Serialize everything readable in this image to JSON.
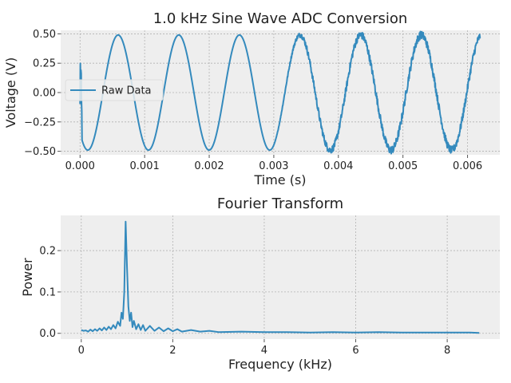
{
  "chart_data": [
    {
      "type": "line",
      "title": "1.0 kHz Sine Wave ADC Conversion",
      "xlabel": "Time (s)",
      "ylabel": "Voltage (V)",
      "xlim": [
        -0.0003,
        0.0065
      ],
      "ylim": [
        -0.53,
        0.53
      ],
      "xticks": [
        0.0,
        0.001,
        0.002,
        0.003,
        0.004,
        0.005,
        0.006
      ],
      "xtick_labels": [
        "0.000",
        "0.001",
        "0.002",
        "0.003",
        "0.004",
        "0.005",
        "0.006"
      ],
      "yticks": [
        0.5,
        0.25,
        0.0,
        -0.25,
        -0.5
      ],
      "ytick_labels": [
        "0.50",
        "0.25",
        "0.00",
        "−0.25",
        "−0.50"
      ],
      "grid": true,
      "legend": {
        "placement": "center-left",
        "entries": [
          "Raw Data"
        ]
      },
      "series": [
        {
          "name": "Raw Data",
          "color": "#348ABD",
          "signal": {
            "amplitude": 0.49,
            "frequency_hz": 1065,
            "phase_t_at_min": 0.00012,
            "t_start": 0.0,
            "t_end": 0.0062
          },
          "noise_points": [
            [
              0.0,
              0.0
            ],
            [
              0.003,
              0.0
            ],
            [
              0.0035,
              0.025
            ],
            [
              0.004,
              0.03
            ],
            [
              0.005,
              0.035
            ],
            [
              0.0062,
              0.03
            ]
          ]
        }
      ]
    },
    {
      "type": "line",
      "title": "Fourier Transform",
      "xlabel": "Frequency (kHz)",
      "ylabel": "Power",
      "xlim": [
        -0.45,
        9.15
      ],
      "ylim": [
        -0.014,
        0.285
      ],
      "xticks": [
        0,
        2,
        4,
        6,
        8
      ],
      "xtick_labels": [
        "0",
        "2",
        "4",
        "6",
        "8"
      ],
      "yticks": [
        0.0,
        0.1,
        0.2
      ],
      "ytick_labels": [
        "0.0",
        "0.1",
        "0.2"
      ],
      "grid": true,
      "series": [
        {
          "color": "#348ABD",
          "points": [
            [
              0.0,
              0.008
            ],
            [
              0.05,
              0.006
            ],
            [
              0.1,
              0.007
            ],
            [
              0.15,
              0.004
            ],
            [
              0.2,
              0.009
            ],
            [
              0.25,
              0.005
            ],
            [
              0.3,
              0.01
            ],
            [
              0.35,
              0.006
            ],
            [
              0.4,
              0.012
            ],
            [
              0.45,
              0.007
            ],
            [
              0.5,
              0.014
            ],
            [
              0.55,
              0.008
            ],
            [
              0.6,
              0.016
            ],
            [
              0.65,
              0.01
            ],
            [
              0.7,
              0.02
            ],
            [
              0.75,
              0.012
            ],
            [
              0.8,
              0.028
            ],
            [
              0.85,
              0.018
            ],
            [
              0.88,
              0.05
            ],
            [
              0.91,
              0.035
            ],
            [
              0.94,
              0.1
            ],
            [
              0.97,
              0.27
            ],
            [
              1.0,
              0.16
            ],
            [
              1.03,
              0.065
            ],
            [
              1.06,
              0.03
            ],
            [
              1.09,
              0.05
            ],
            [
              1.12,
              0.015
            ],
            [
              1.15,
              0.03
            ],
            [
              1.2,
              0.01
            ],
            [
              1.25,
              0.022
            ],
            [
              1.3,
              0.008
            ],
            [
              1.35,
              0.02
            ],
            [
              1.4,
              0.006
            ],
            [
              1.5,
              0.018
            ],
            [
              1.6,
              0.006
            ],
            [
              1.7,
              0.014
            ],
            [
              1.8,
              0.005
            ],
            [
              1.9,
              0.012
            ],
            [
              2.0,
              0.005
            ],
            [
              2.1,
              0.01
            ],
            [
              2.2,
              0.004
            ],
            [
              2.4,
              0.008
            ],
            [
              2.6,
              0.004
            ],
            [
              2.8,
              0.006
            ],
            [
              3.0,
              0.003
            ],
            [
              3.5,
              0.004
            ],
            [
              4.0,
              0.003
            ],
            [
              4.5,
              0.003
            ],
            [
              5.0,
              0.002
            ],
            [
              5.5,
              0.003
            ],
            [
              6.0,
              0.002
            ],
            [
              6.5,
              0.003
            ],
            [
              7.0,
              0.002
            ],
            [
              7.5,
              0.002
            ],
            [
              8.0,
              0.002
            ],
            [
              8.5,
              0.002
            ],
            [
              8.7,
              0.001
            ]
          ]
        }
      ]
    }
  ],
  "colors": {
    "axes_background": "#EEEEEE",
    "grid": "#B2B2B2",
    "line": "#348ABD"
  }
}
